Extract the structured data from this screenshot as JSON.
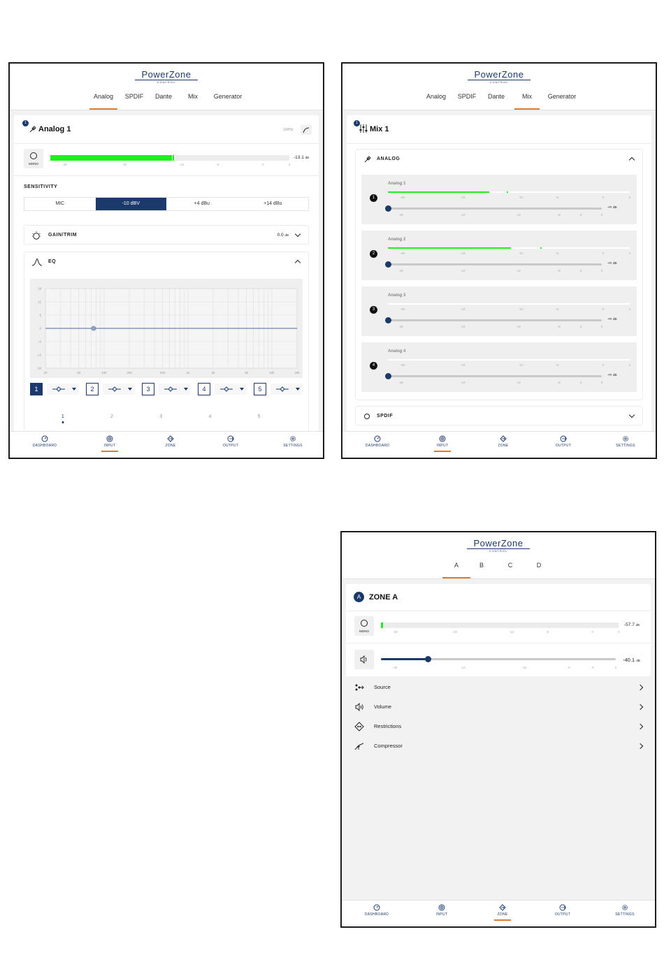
{
  "brand": {
    "name": "PowerZone",
    "sub": "CONTROL"
  },
  "nav": [
    "DASHBOARD",
    "INPUT",
    "ZONE",
    "OUTPUT",
    "SETTINGS"
  ],
  "colors": {
    "navy": "#1b3a6b",
    "accent": "#e07b2e",
    "meter": "#1df01d"
  },
  "input_analog": {
    "tabs": [
      "Analog",
      "SPDIF",
      "Dante",
      "Mix",
      "Generator"
    ],
    "active_tab": "Analog",
    "badge": "1",
    "title": "Analog 1",
    "hpf_label": "100Hz",
    "mono_label": "MONO",
    "meter_value": "-13.1",
    "meter_unit": "dB",
    "meter_level_percent": 51,
    "meter_ticks": [
      "-48",
      "-24",
      "-12",
      "-6",
      "0",
      "3"
    ],
    "sensitivity_label": "SENSITIVITY",
    "sensitivity_options": [
      "MIC",
      "-10 dBV",
      "+4 dBu",
      "+14 dBu"
    ],
    "sensitivity_selected": "-10 dBV",
    "gain_label": "GAIN/TRIM",
    "gain_value": "0.0",
    "gain_unit": "dB",
    "eq_label": "EQ",
    "eq_y_ticks": [
      "18",
      "12",
      "6",
      "0",
      "-6",
      "-12",
      "-18"
    ],
    "eq_x_ticks": [
      "20",
      "50",
      "100",
      "200",
      "500",
      "1k",
      "2k",
      "5k",
      "10k",
      "20k"
    ],
    "bands": [
      "1",
      "2",
      "3",
      "4",
      "5"
    ],
    "band_active": "1",
    "pager": [
      "1",
      "2",
      "3",
      "4",
      "5"
    ]
  },
  "input_mix": {
    "tabs": [
      "Analog",
      "SPDIF",
      "Dante",
      "Mix",
      "Generator"
    ],
    "active_tab": "Mix",
    "badge": "1",
    "title": "Mix 1",
    "group_analog": "ANALOG",
    "group_spdif": "SPDIF",
    "meter_ticks": [
      "-48",
      "-24",
      "-12",
      "-6",
      "0",
      "3"
    ],
    "fader_ticks": [
      "-48",
      "-24",
      "-12",
      "-6",
      "-3",
      "0"
    ],
    "channels": [
      {
        "num": "1",
        "name": "Analog 1",
        "level_percent": 42,
        "peak_percent": 49,
        "fader_value": "-∞",
        "unit": "dB"
      },
      {
        "num": "2",
        "name": "Analog 2",
        "level_percent": 51,
        "peak_percent": 63,
        "fader_value": "-∞",
        "unit": "dB"
      },
      {
        "num": "3",
        "name": "Analog 3",
        "level_percent": 0,
        "peak_percent": 0,
        "fader_value": "-∞",
        "unit": "dB"
      },
      {
        "num": "4",
        "name": "Analog 4",
        "level_percent": 0,
        "peak_percent": 0,
        "fader_value": "-∞",
        "unit": "dB"
      }
    ]
  },
  "zone": {
    "tabs": [
      "A",
      "B",
      "C",
      "D"
    ],
    "active_tab": "A",
    "badge": "A",
    "title": "ZONE A",
    "mono_label": "MONO",
    "meter_value": "-57.7",
    "meter_unit": "dB",
    "meter_level_percent": 1,
    "meter_ticks": [
      "-48",
      "-24",
      "-12",
      "-6",
      "0",
      "3"
    ],
    "volume_value": "-40.1",
    "volume_unit": "dB",
    "volume_level_percent": 20,
    "volume_ticks": [
      "-48",
      "-24",
      "-12",
      "-6",
      "-3",
      "0"
    ],
    "menu": [
      "Source",
      "Volume",
      "Restrictions",
      "Compressor"
    ]
  }
}
